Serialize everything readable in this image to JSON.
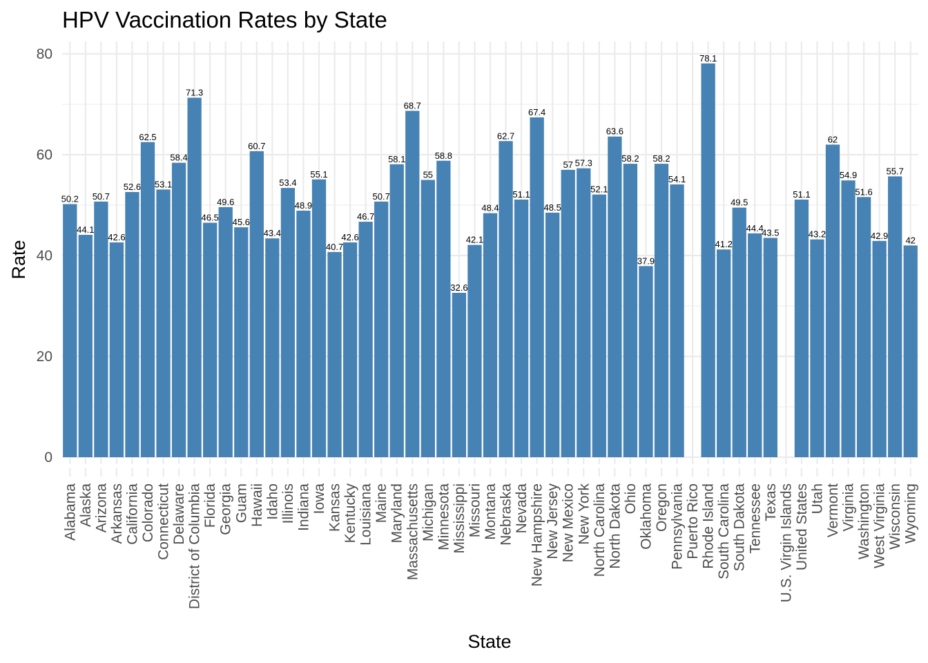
{
  "chart_data": {
    "type": "bar",
    "title": "HPV Vaccination Rates by State",
    "xlabel": "State",
    "ylabel": "Rate",
    "ylim": [
      0,
      80
    ],
    "yticks": [
      0,
      20,
      40,
      60,
      80
    ],
    "grid": true,
    "bar_color": "#4682B4",
    "categories": [
      "Alabama",
      "Alaska",
      "Arizona",
      "Arkansas",
      "California",
      "Colorado",
      "Connecticut",
      "Delaware",
      "District of Columbia",
      "Florida",
      "Georgia",
      "Guam",
      "Hawaii",
      "Idaho",
      "Illinois",
      "Indiana",
      "Iowa",
      "Kansas",
      "Kentucky",
      "Louisiana",
      "Maine",
      "Maryland",
      "Massachusetts",
      "Michigan",
      "Minnesota",
      "Mississippi",
      "Missouri",
      "Montana",
      "Nebraska",
      "Nevada",
      "New Hampshire",
      "New Jersey",
      "New Mexico",
      "New York",
      "North Carolina",
      "North Dakota",
      "Ohio",
      "Oklahoma",
      "Oregon",
      "Pennsylvania",
      "Puerto Rico",
      "Rhode Island",
      "South Carolina",
      "South Dakota",
      "Tennessee",
      "Texas",
      "U.S. Virgin Islands",
      "United States",
      "Utah",
      "Vermont",
      "Virginia",
      "Washington",
      "West Virginia",
      "Wisconsin",
      "Wyoming"
    ],
    "values": [
      50.2,
      44.1,
      50.7,
      42.6,
      52.6,
      62.5,
      53.1,
      58.4,
      71.3,
      46.5,
      49.6,
      45.6,
      60.7,
      43.4,
      53.4,
      48.9,
      55.1,
      40.7,
      42.6,
      46.7,
      50.7,
      58.1,
      68.7,
      55,
      58.8,
      32.6,
      42.1,
      48.4,
      62.7,
      51.1,
      67.4,
      48.5,
      57,
      57.3,
      52.1,
      63.6,
      58.2,
      37.9,
      58.2,
      54.1,
      null,
      78.1,
      41.2,
      49.5,
      44.4,
      43.5,
      null,
      51.1,
      43.2,
      62,
      54.9,
      51.6,
      42.9,
      55.7,
      42
    ]
  }
}
